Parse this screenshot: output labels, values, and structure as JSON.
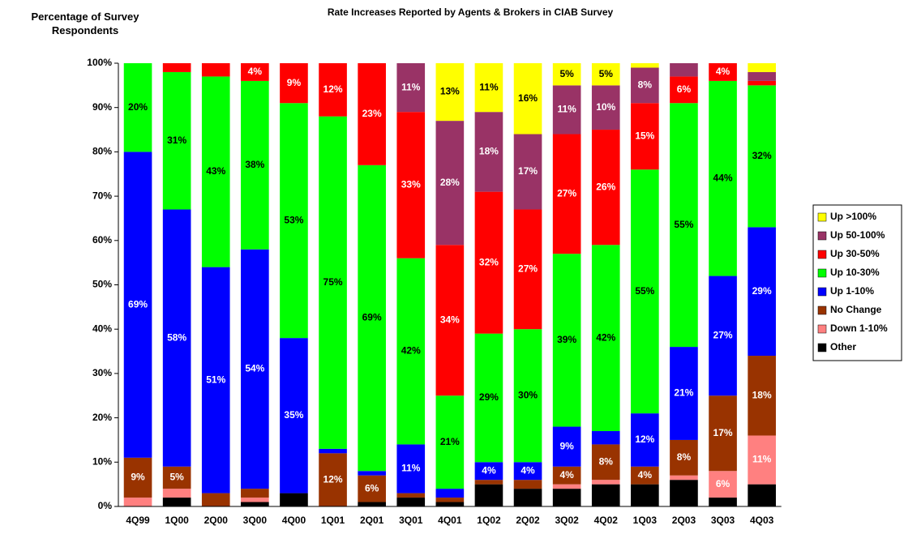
{
  "chart_data": {
    "type": "stacked-bar",
    "title": "Rate Increases Reported by Agents & Brokers in CIAB Survey",
    "y_label": "Percentage of Survey Respondents",
    "categories": [
      "4Q99",
      "1Q00",
      "2Q00",
      "3Q00",
      "4Q00",
      "1Q01",
      "2Q01",
      "3Q01",
      "4Q01",
      "1Q02",
      "2Q02",
      "3Q02",
      "4Q02",
      "1Q03",
      "2Q03",
      "3Q03",
      "4Q03"
    ],
    "ylim": [
      0,
      100
    ],
    "yticks": [
      {
        "value": 0,
        "label": "0%"
      },
      {
        "value": 10,
        "label": "10%"
      },
      {
        "value": 20,
        "label": "20%"
      },
      {
        "value": 30,
        "label": "30%"
      },
      {
        "value": 40,
        "label": "40%"
      },
      {
        "value": 50,
        "label": "50%"
      },
      {
        "value": 60,
        "label": "60%"
      },
      {
        "value": 70,
        "label": "70%"
      },
      {
        "value": 80,
        "label": "80%"
      },
      {
        "value": 90,
        "label": "90%"
      },
      {
        "value": 100,
        "label": "100%"
      }
    ],
    "legend": "right",
    "series": [
      {
        "name": "Other",
        "color": "#000000",
        "values": [
          0,
          2,
          0,
          1,
          3,
          0,
          1,
          2,
          1,
          5,
          4,
          4,
          5,
          5,
          6,
          2,
          5
        ],
        "value_labels": [
          null,
          null,
          null,
          null,
          null,
          null,
          null,
          null,
          null,
          null,
          null,
          null,
          null,
          null,
          null,
          null,
          null
        ]
      },
      {
        "name": "Down 1-10%",
        "color": "#ff8080",
        "values": [
          2,
          2,
          0,
          1,
          0,
          0,
          0,
          0,
          0,
          0,
          0,
          1,
          1,
          0,
          1,
          6,
          11
        ],
        "value_labels": [
          null,
          null,
          null,
          null,
          null,
          null,
          null,
          null,
          null,
          null,
          null,
          null,
          null,
          null,
          null,
          "6%",
          "11%"
        ]
      },
      {
        "name": "No Change",
        "color": "#993300",
        "values": [
          9,
          5,
          3,
          2,
          0,
          12,
          6,
          1,
          1,
          1,
          2,
          4,
          8,
          4,
          8,
          17,
          18
        ],
        "value_labels": [
          "9%",
          "5%",
          null,
          null,
          null,
          "12%",
          "6%",
          null,
          null,
          null,
          null,
          "4%",
          "8%",
          "4%",
          "8%",
          "17%",
          "18%"
        ]
      },
      {
        "name": "Up 1-10%",
        "color": "#0000ff",
        "values": [
          69,
          58,
          51,
          54,
          35,
          1,
          1,
          11,
          2,
          4,
          4,
          9,
          3,
          12,
          21,
          27,
          29
        ],
        "value_labels": [
          "69%",
          "58%",
          "51%",
          "54%",
          "35%",
          null,
          null,
          "11%",
          null,
          "4%",
          "4%",
          "9%",
          null,
          "12%",
          "21%",
          "27%",
          "29%"
        ]
      },
      {
        "name": "Up 10-30%",
        "color": "#00ff00",
        "values": [
          20,
          31,
          43,
          38,
          53,
          75,
          69,
          42,
          21,
          29,
          30,
          39,
          42,
          55,
          55,
          44,
          32
        ],
        "value_labels": [
          "20%",
          "31%",
          "43%",
          "38%",
          "53%",
          "75%",
          "69%",
          "42%",
          "21%",
          "29%",
          "30%",
          "39%",
          "42%",
          "55%",
          "55%",
          "44%",
          "32%"
        ]
      },
      {
        "name": "Up 30-50%",
        "color": "#ff0000",
        "values": [
          0,
          2,
          3,
          4,
          9,
          12,
          23,
          33,
          34,
          32,
          27,
          27,
          26,
          15,
          6,
          4,
          1
        ],
        "value_labels": [
          null,
          null,
          null,
          "4%",
          "9%",
          "12%",
          "23%",
          "33%",
          "34%",
          "32%",
          "27%",
          "27%",
          "26%",
          "15%",
          "6%",
          "4%",
          null
        ]
      },
      {
        "name": "Up 50-100%",
        "color": "#993366",
        "values": [
          0,
          0,
          0,
          0,
          0,
          0,
          0,
          11,
          28,
          18,
          17,
          11,
          10,
          8,
          3,
          0,
          2
        ],
        "value_labels": [
          null,
          null,
          null,
          null,
          null,
          null,
          null,
          "11%",
          "28%",
          "18%",
          "17%",
          "11%",
          "10%",
          "8%",
          null,
          null,
          null
        ]
      },
      {
        "name": "Up >100%",
        "color": "#ffff00",
        "values": [
          0,
          0,
          0,
          0,
          0,
          0,
          0,
          0,
          13,
          11,
          16,
          5,
          5,
          1,
          0,
          0,
          2
        ],
        "value_labels": [
          null,
          null,
          null,
          null,
          null,
          null,
          null,
          null,
          "13%",
          "11%",
          "16%",
          "5%",
          "5%",
          null,
          null,
          null,
          null
        ]
      }
    ]
  }
}
